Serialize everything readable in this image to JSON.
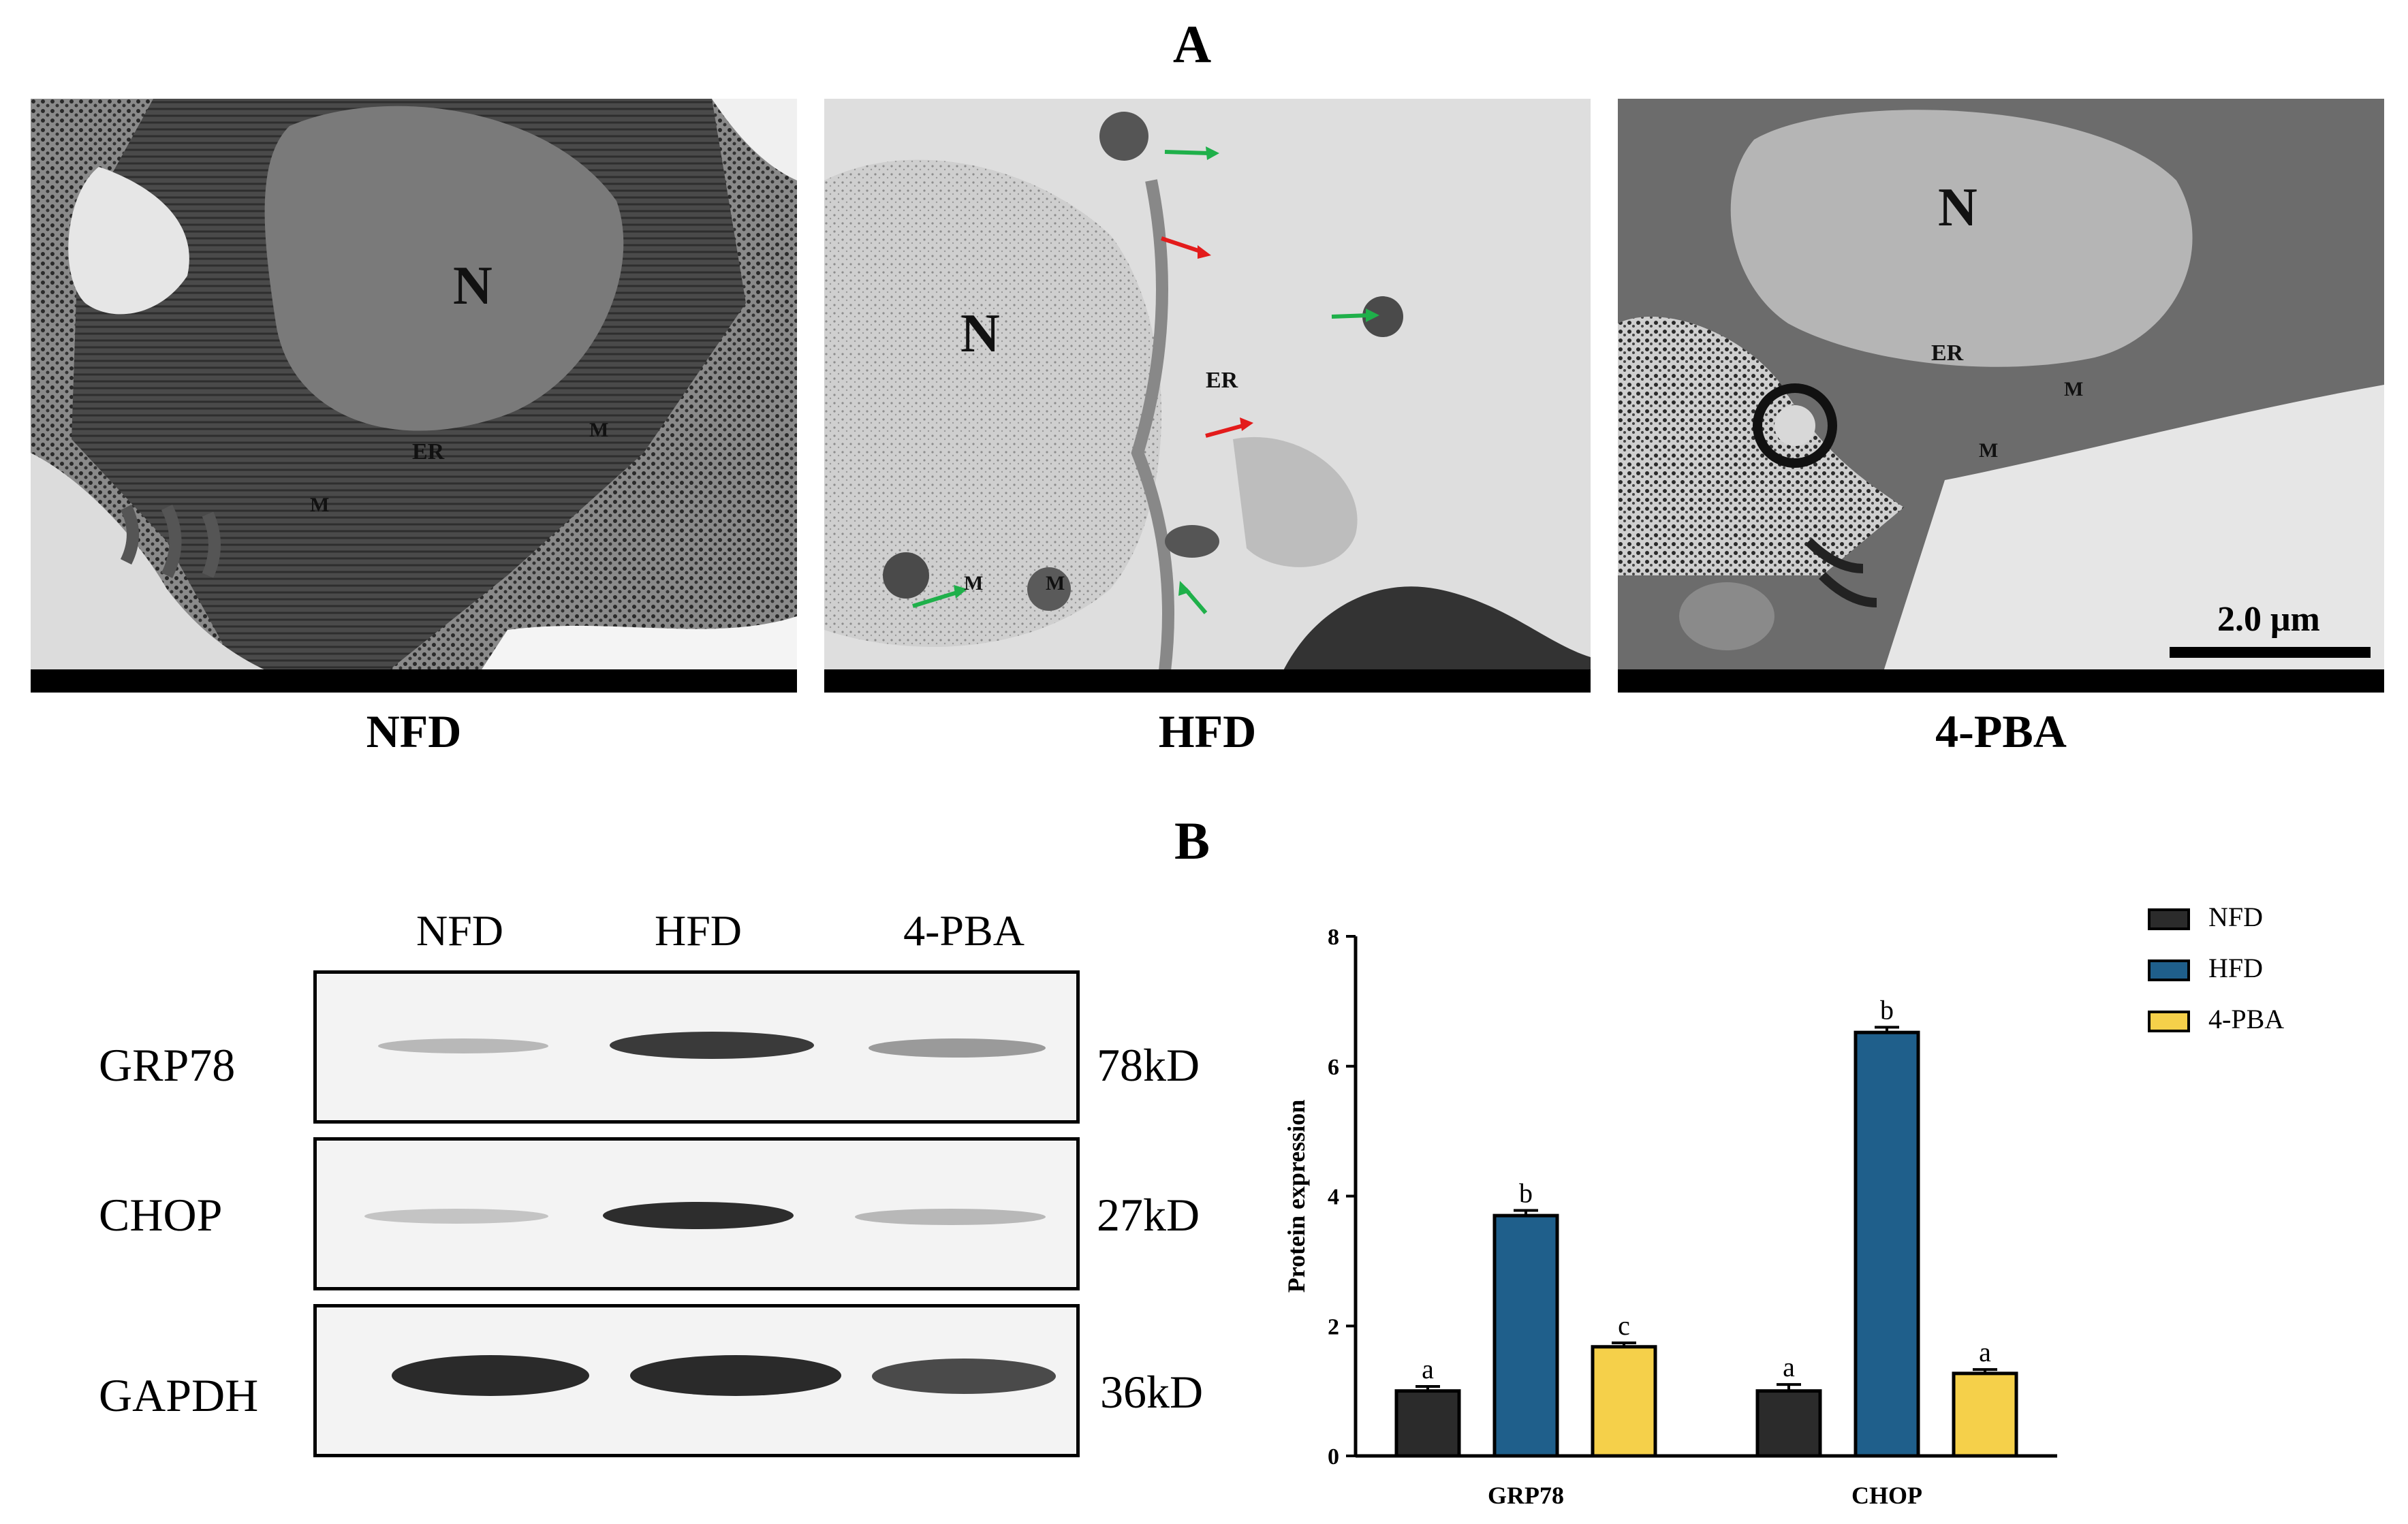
{
  "panels": {
    "a_label": "A",
    "b_label": "B"
  },
  "em_images": [
    {
      "label": "NFD",
      "tags": {
        "nucleus": "N",
        "er": "ER",
        "m1": "M",
        "m2": "M"
      }
    },
    {
      "label": "HFD",
      "tags": {
        "nucleus": "N",
        "er": "ER",
        "m1": "M",
        "m2": "M"
      }
    },
    {
      "label": "4-PBA",
      "tags": {
        "nucleus": "N",
        "er": "ER",
        "m1": "M",
        "m2": "M"
      },
      "scalebar": "2.0 μm"
    }
  ],
  "western_blot": {
    "lanes": [
      "NFD",
      "HFD",
      "4-PBA"
    ],
    "rows": [
      {
        "protein": "GRP78",
        "kd": "78kD"
      },
      {
        "protein": "CHOP",
        "kd": "27kD"
      },
      {
        "protein": "GAPDH",
        "kd": "36kD"
      }
    ]
  },
  "chart_data": {
    "type": "bar",
    "categories": [
      "GRP78",
      "CHOP"
    ],
    "series": [
      {
        "name": "NFD",
        "values": [
          1.0,
          1.0
        ],
        "errors": [
          0.07,
          0.1
        ],
        "letters": [
          "a",
          "a"
        ],
        "color": "#2b2b2b"
      },
      {
        "name": "HFD",
        "values": [
          3.7,
          6.52
        ],
        "errors": [
          0.08,
          0.08
        ],
        "letters": [
          "b",
          "b"
        ],
        "color": "#1f5f8b"
      },
      {
        "name": "4-PBA",
        "values": [
          1.68,
          1.27
        ],
        "errors": [
          0.06,
          0.06
        ],
        "letters": [
          "c",
          "a"
        ],
        "color": "#f5d04a"
      }
    ],
    "ylabel": "Protein expression",
    "ylim": [
      0,
      8
    ],
    "yticks": [
      "0",
      "2",
      "4",
      "6",
      "8"
    ],
    "legend": "top-right"
  }
}
